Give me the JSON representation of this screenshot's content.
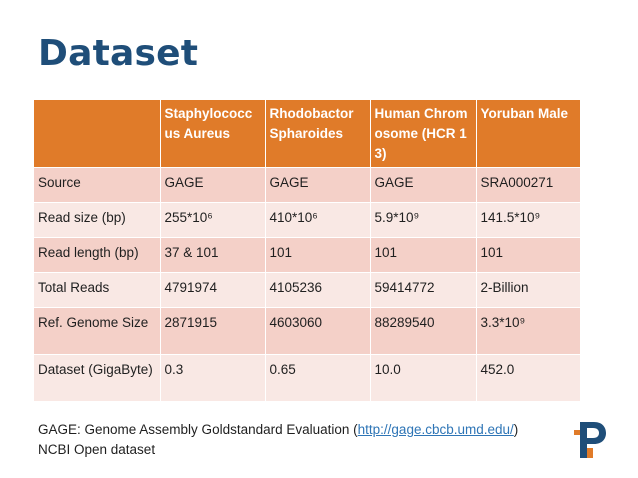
{
  "slide": {
    "title": "Dataset"
  },
  "table": {
    "headers": [
      "",
      "Staphylococcus Aureus",
      "Rhodobactor Spharoides",
      "Human Chromosome (HCR 13)",
      "Yoruban Male"
    ],
    "rows": [
      {
        "label": "Source",
        "cells": [
          "GAGE",
          "GAGE",
          "GAGE",
          "SRA000271"
        ]
      },
      {
        "label": "Read size (bp)",
        "cells": [
          "255*10⁶",
          "410*10⁶",
          "5.9*10⁹",
          "141.5*10⁹"
        ]
      },
      {
        "label": "Read length (bp)",
        "cells": [
          "37 & 101",
          "101",
          "101",
          "101"
        ]
      },
      {
        "label": "Total Reads",
        "cells": [
          "4791974",
          "4105236",
          "59414772",
          "2-Billion"
        ]
      },
      {
        "label": "Ref. Genome Size",
        "cells": [
          "2871915",
          "4603060",
          "88289540",
          "3.3*10⁹"
        ]
      },
      {
        "label": "Dataset (GigaByte)",
        "cells": [
          "0.3",
          "0.65",
          "10.0",
          "452.0"
        ]
      }
    ]
  },
  "footer": {
    "line1_prefix": "GAGE: Genome Assembly Goldstandard Evaluation (",
    "line1_link": "http://gage.cbcb.umd.edu/",
    "line1_suffix": ")",
    "line2": "NCBI Open dataset"
  },
  "logo": {
    "icon": "university-logo-icon",
    "colors": {
      "blue": "#1f4e79",
      "orange": "#e07b29"
    }
  },
  "colors": {
    "title": "#1f4e79",
    "header_bg": "#e07b29",
    "row_odd": "#f4d0c8",
    "row_even": "#f9e8e4",
    "link": "#2e75b6"
  }
}
